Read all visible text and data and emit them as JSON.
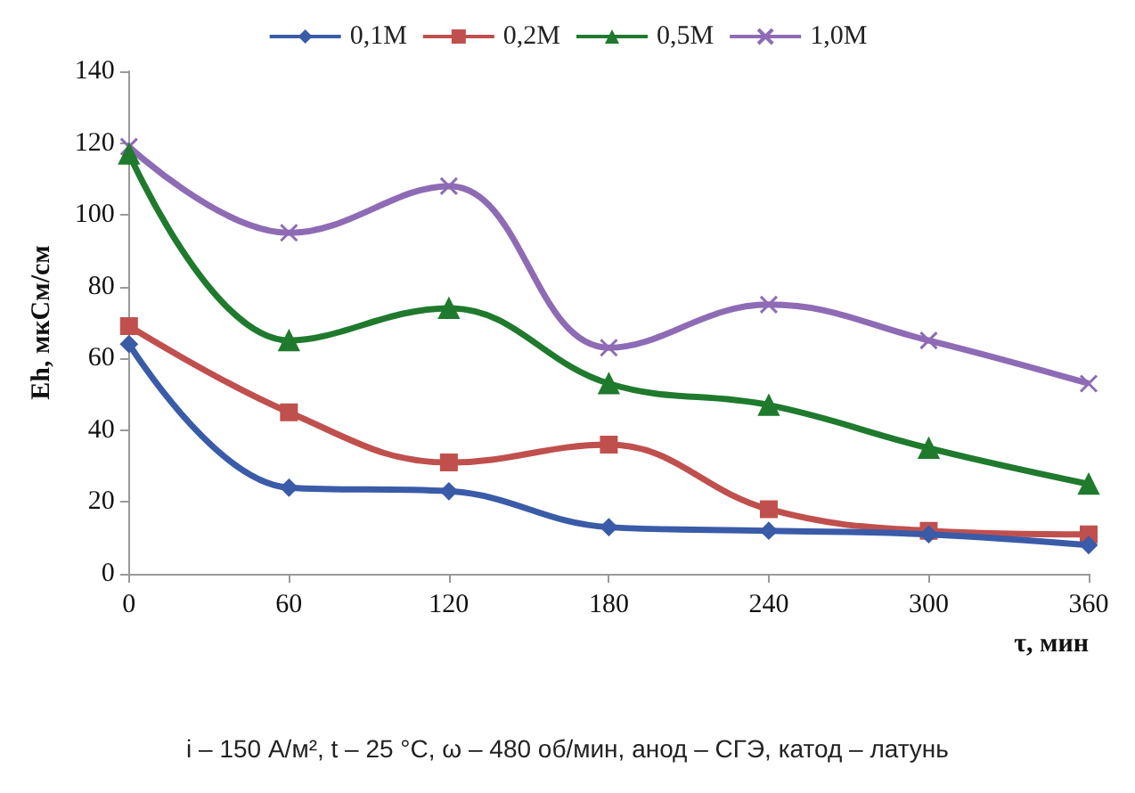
{
  "chart_data": {
    "type": "line",
    "xlabel": "τ, мин",
    "ylabel": "Eh, мкСм/см",
    "categories": [
      "0",
      "60",
      "120",
      "180",
      "240",
      "300",
      "360"
    ],
    "series": [
      {
        "name": "0,1M",
        "color": "#3a5ba8",
        "marker": "diamond",
        "values": [
          64,
          24,
          23,
          13,
          12,
          11,
          8
        ]
      },
      {
        "name": "0,2M",
        "color": "#c0504d",
        "marker": "square",
        "values": [
          69,
          45,
          31,
          36,
          18,
          12,
          11
        ]
      },
      {
        "name": "0,5M",
        "color": "#1f7a2e",
        "marker": "triangle",
        "values": [
          117,
          65,
          74,
          53,
          47,
          35,
          25
        ]
      },
      {
        "name": "1,0M",
        "color": "#8e6bb5",
        "marker": "cross",
        "values": [
          119,
          95,
          108,
          63,
          75,
          65,
          53
        ]
      }
    ],
    "ylim": [
      0,
      140
    ],
    "yticks": [
      0,
      20,
      40,
      60,
      80,
      100,
      120,
      140
    ],
    "grid": false,
    "legend": "top",
    "annotations": [
      "i – 150 А/м², t – 25 °C, ω – 480 об/мин, анод – СГЭ, катод – латунь"
    ]
  }
}
